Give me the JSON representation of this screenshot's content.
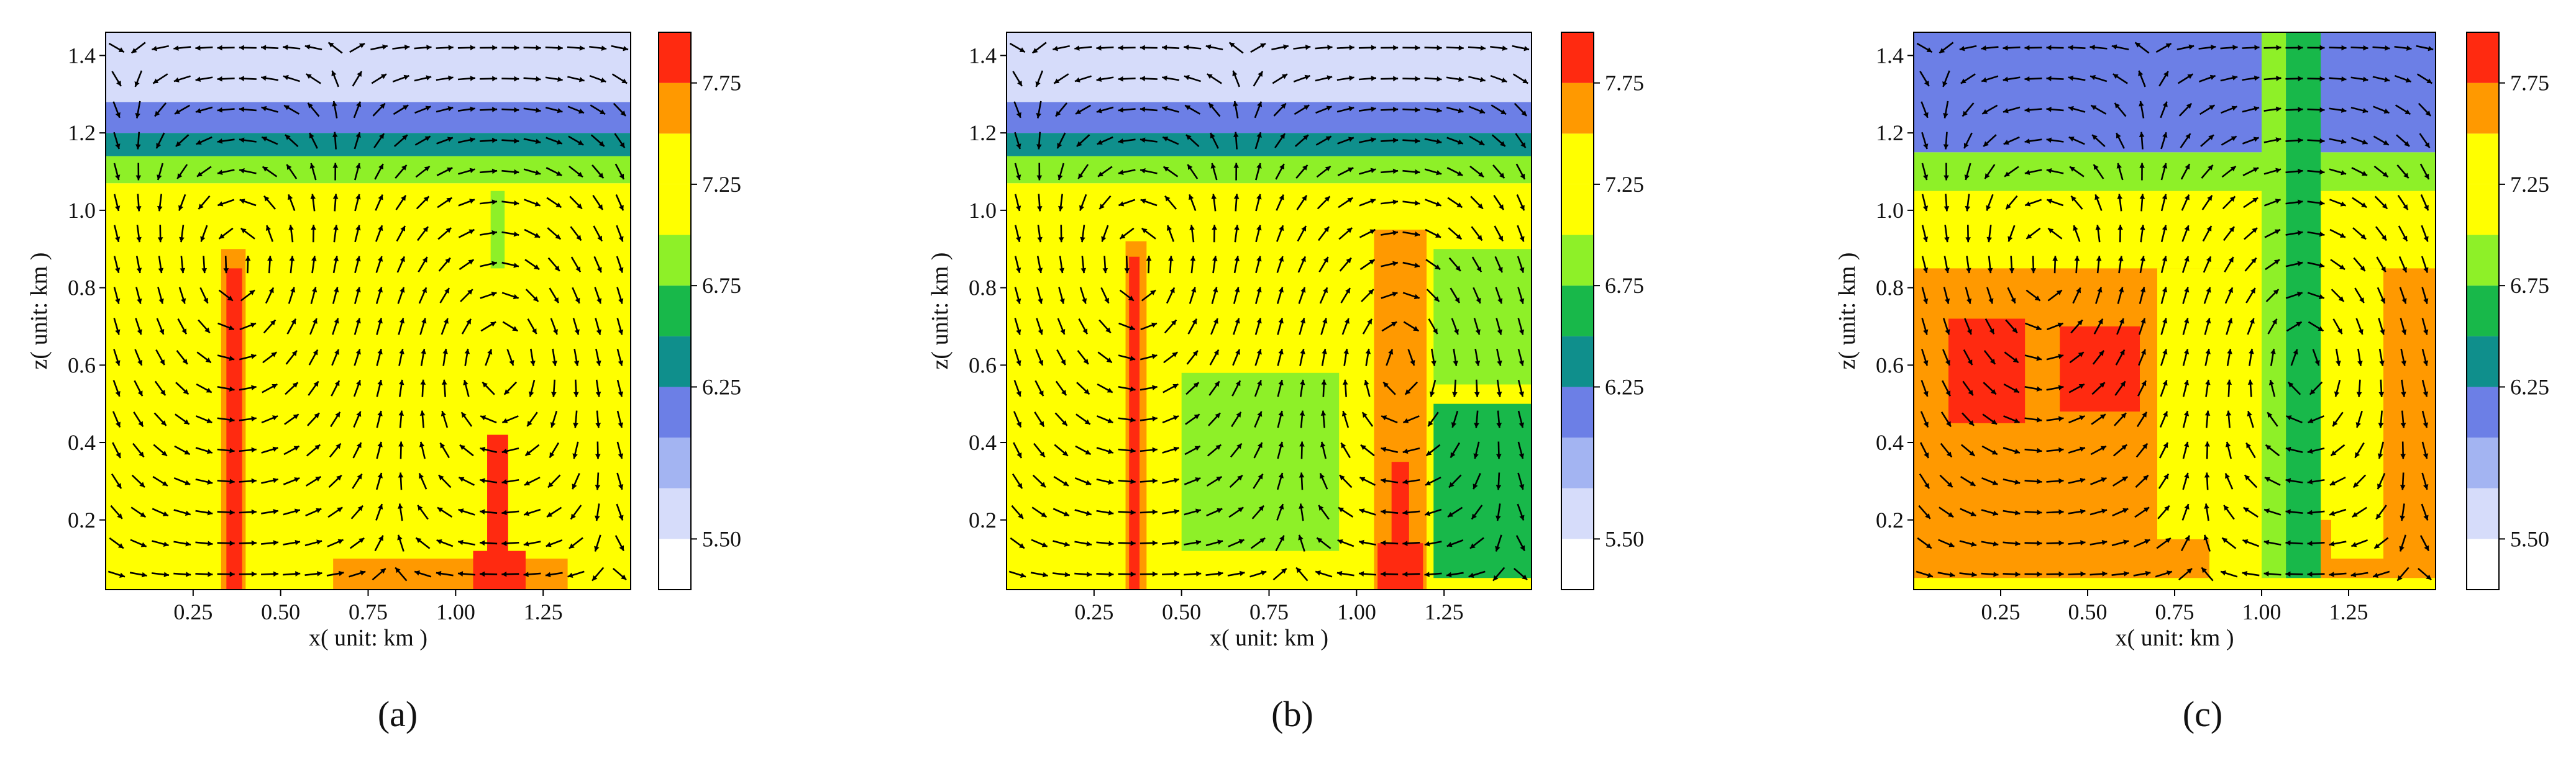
{
  "figure": {
    "panels": [
      {
        "label": "(a)",
        "bold": "a"
      },
      {
        "label": "(b)",
        "bold": "b"
      },
      {
        "label": "(c)",
        "bold": "c"
      }
    ]
  },
  "chart_data": [
    {
      "type": "heatmap",
      "panel": "(a)",
      "title": "",
      "xlabel": "x( unit: km )",
      "ylabel": "z( unit: km )",
      "xlim": [
        0.0,
        1.5
      ],
      "ylim": [
        0.02,
        1.46
      ],
      "xticks": [
        0.25,
        0.5,
        0.75,
        1.0,
        1.25
      ],
      "xtick_labels": [
        "0.25",
        "0.50",
        "0.75",
        "1.00",
        "1.25"
      ],
      "yticks": [
        0.2,
        0.4,
        0.6,
        0.8,
        1.0,
        1.2,
        1.4
      ],
      "ytick_labels": [
        "0.2",
        "0.4",
        "0.6",
        "0.8",
        "1.0",
        "1.2",
        "1.4"
      ],
      "colorbar": {
        "levels": [
          5.25,
          5.5,
          5.75,
          6.0,
          6.25,
          6.5,
          6.75,
          7.0,
          7.25,
          7.5,
          7.75,
          8.0
        ],
        "colors": [
          "#ffffff",
          "#d6dcfa",
          "#a3b4f2",
          "#6c7fe6",
          "#0f8f8c",
          "#18b84a",
          "#8ef028",
          "#ffff00",
          "#ffff00",
          "#ff9900",
          "#ff2a10"
        ],
        "tick_values": [
          5.5,
          6.25,
          6.75,
          7.25,
          7.75
        ],
        "tick_labels": [
          "5.50",
          "6.25",
          "6.75",
          "7.25",
          "7.75"
        ]
      },
      "field_regions": [
        {
          "value": 7.4,
          "x": [
            0.0,
            1.5
          ],
          "z": [
            0.0,
            1.05
          ]
        },
        {
          "value": 7.1,
          "x": [
            0.0,
            1.5
          ],
          "z": [
            1.0,
            1.07
          ]
        },
        {
          "value": 6.9,
          "x": [
            0.0,
            1.5
          ],
          "z": [
            1.07,
            1.14
          ]
        },
        {
          "value": 6.4,
          "x": [
            0.0,
            1.5
          ],
          "z": [
            1.14,
            1.2
          ]
        },
        {
          "value": 6.0,
          "x": [
            0.0,
            1.5
          ],
          "z": [
            1.2,
            1.28
          ]
        },
        {
          "value": 5.6,
          "x": [
            0.0,
            1.5
          ],
          "z": [
            1.28,
            1.46
          ]
        },
        {
          "value": 7.1,
          "x": [
            0.12,
            0.19
          ],
          "z": [
            0.05,
            0.47
          ]
        },
        {
          "value": 7.1,
          "x": [
            0.85,
            1.02
          ],
          "z": [
            0.5,
            0.83
          ]
        },
        {
          "value": 7.1,
          "x": [
            0.7,
            1.5
          ],
          "z": [
            0.3,
            0.58
          ]
        },
        {
          "value": 7.1,
          "x": [
            1.15,
            1.5
          ],
          "z": [
            0.55,
            1.0
          ]
        },
        {
          "value": 6.9,
          "x": [
            1.1,
            1.14
          ],
          "z": [
            0.85,
            1.05
          ]
        },
        {
          "value": 7.6,
          "x": [
            0.65,
            1.32
          ],
          "z": [
            0.02,
            0.1
          ]
        },
        {
          "value": 7.6,
          "x": [
            0.33,
            0.4
          ],
          "z": [
            0.02,
            0.9
          ]
        },
        {
          "value": 7.9,
          "x": [
            0.345,
            0.39
          ],
          "z": [
            0.02,
            0.85
          ]
        },
        {
          "value": 7.9,
          "x": [
            1.05,
            1.2
          ],
          "z": [
            0.02,
            0.12
          ]
        },
        {
          "value": 7.9,
          "x": [
            1.09,
            1.15
          ],
          "z": [
            0.02,
            0.42
          ]
        }
      ]
    },
    {
      "type": "heatmap",
      "panel": "(b)",
      "title": "",
      "xlabel": "x( unit: km )",
      "ylabel": "z( unit: km )",
      "xlim": [
        0.0,
        1.5
      ],
      "ylim": [
        0.02,
        1.46
      ],
      "xticks": [
        0.25,
        0.5,
        0.75,
        1.0,
        1.25
      ],
      "xtick_labels": [
        "0.25",
        "0.50",
        "0.75",
        "1.00",
        "1.25"
      ],
      "yticks": [
        0.2,
        0.4,
        0.6,
        0.8,
        1.0,
        1.2,
        1.4
      ],
      "ytick_labels": [
        "0.2",
        "0.4",
        "0.6",
        "0.8",
        "1.0",
        "1.2",
        "1.4"
      ],
      "colorbar": {
        "levels": [
          5.25,
          5.5,
          5.75,
          6.0,
          6.25,
          6.5,
          6.75,
          7.0,
          7.25,
          7.5,
          7.75,
          8.0
        ],
        "colors": [
          "#ffffff",
          "#d6dcfa",
          "#a3b4f2",
          "#6c7fe6",
          "#0f8f8c",
          "#18b84a",
          "#8ef028",
          "#ffff00",
          "#ffff00",
          "#ff9900",
          "#ff2a10"
        ],
        "tick_values": [
          5.5,
          6.25,
          6.75,
          7.25,
          7.75
        ],
        "tick_labels": [
          "5.50",
          "6.25",
          "6.75",
          "7.25",
          "7.75"
        ]
      },
      "field_regions": [
        {
          "value": 7.4,
          "x": [
            0.0,
            1.5
          ],
          "z": [
            0.0,
            1.05
          ]
        },
        {
          "value": 7.1,
          "x": [
            0.0,
            1.5
          ],
          "z": [
            1.0,
            1.07
          ]
        },
        {
          "value": 6.9,
          "x": [
            0.0,
            1.5
          ],
          "z": [
            1.07,
            1.14
          ]
        },
        {
          "value": 6.4,
          "x": [
            0.0,
            1.5
          ],
          "z": [
            1.14,
            1.2
          ]
        },
        {
          "value": 6.0,
          "x": [
            0.0,
            1.5
          ],
          "z": [
            1.2,
            1.28
          ]
        },
        {
          "value": 5.6,
          "x": [
            0.0,
            1.5
          ],
          "z": [
            1.28,
            1.46
          ]
        },
        {
          "value": 7.1,
          "x": [
            0.17,
            0.33
          ],
          "z": [
            0.05,
            0.6
          ]
        },
        {
          "value": 7.1,
          "x": [
            0.42,
            1.0
          ],
          "z": [
            0.1,
            0.95
          ]
        },
        {
          "value": 7.1,
          "x": [
            1.22,
            1.5
          ],
          "z": [
            0.05,
            0.98
          ]
        },
        {
          "value": 6.9,
          "x": [
            0.5,
            0.95
          ],
          "z": [
            0.12,
            0.58
          ]
        },
        {
          "value": 6.9,
          "x": [
            1.22,
            1.5
          ],
          "z": [
            0.55,
            0.9
          ]
        },
        {
          "value": 6.6,
          "x": [
            1.22,
            1.5
          ],
          "z": [
            0.05,
            0.5
          ]
        },
        {
          "value": 7.6,
          "x": [
            0.34,
            0.4
          ],
          "z": [
            0.02,
            0.92
          ]
        },
        {
          "value": 7.9,
          "x": [
            0.35,
            0.38
          ],
          "z": [
            0.02,
            0.88
          ]
        },
        {
          "value": 7.6,
          "x": [
            1.05,
            1.2
          ],
          "z": [
            0.02,
            0.95
          ]
        },
        {
          "value": 7.9,
          "x": [
            1.06,
            1.19
          ],
          "z": [
            0.02,
            0.14
          ]
        },
        {
          "value": 7.9,
          "x": [
            1.1,
            1.15
          ],
          "z": [
            0.02,
            0.35
          ]
        }
      ]
    },
    {
      "type": "heatmap",
      "panel": "(c)",
      "title": "",
      "xlabel": "x( unit: km )",
      "ylabel": "z( unit: km )",
      "xlim": [
        0.0,
        1.5
      ],
      "ylim": [
        0.02,
        1.46
      ],
      "xticks": [
        0.25,
        0.5,
        0.75,
        1.0,
        1.25
      ],
      "xtick_labels": [
        "0.25",
        "0.50",
        "0.75",
        "1.00",
        "1.25"
      ],
      "yticks": [
        0.2,
        0.4,
        0.6,
        0.8,
        1.0,
        1.2,
        1.4
      ],
      "ytick_labels": [
        "0.2",
        "0.4",
        "0.6",
        "0.8",
        "1.0",
        "1.2",
        "1.4"
      ],
      "colorbar": {
        "levels": [
          5.25,
          5.5,
          5.75,
          6.0,
          6.25,
          6.5,
          6.75,
          7.0,
          7.25,
          7.5,
          7.75,
          8.0
        ],
        "colors": [
          "#ffffff",
          "#d6dcfa",
          "#a3b4f2",
          "#6c7fe6",
          "#0f8f8c",
          "#18b84a",
          "#8ef028",
          "#ffff00",
          "#ffff00",
          "#ff9900",
          "#ff2a10"
        ],
        "tick_values": [
          5.5,
          6.25,
          6.75,
          7.25,
          7.75
        ],
        "tick_labels": [
          "5.50",
          "6.25",
          "6.75",
          "7.25",
          "7.75"
        ]
      },
      "field_regions": [
        {
          "value": 7.6,
          "x": [
            0.0,
            1.5
          ],
          "z": [
            0.0,
            1.05
          ]
        },
        {
          "value": 7.1,
          "x": [
            0.0,
            1.5
          ],
          "z": [
            0.85,
            1.05
          ]
        },
        {
          "value": 6.9,
          "x": [
            0.0,
            1.5
          ],
          "z": [
            1.05,
            1.15
          ]
        },
        {
          "value": 6.1,
          "x": [
            0.0,
            1.5
          ],
          "z": [
            1.15,
            1.46
          ]
        },
        {
          "value": 7.4,
          "x": [
            0.7,
            1.0
          ],
          "z": [
            0.15,
            0.85
          ]
        },
        {
          "value": 7.1,
          "x": [
            0.85,
            1.0
          ],
          "z": [
            0.05,
            0.85
          ]
        },
        {
          "value": 7.4,
          "x": [
            1.2,
            1.35
          ],
          "z": [
            0.1,
            0.85
          ]
        },
        {
          "value": 7.1,
          "x": [
            1.17,
            1.25
          ],
          "z": [
            0.2,
            0.85
          ]
        },
        {
          "value": 7.9,
          "x": [
            0.1,
            0.32
          ],
          "z": [
            0.45,
            0.72
          ]
        },
        {
          "value": 7.9,
          "x": [
            0.42,
            0.65
          ],
          "z": [
            0.48,
            0.7
          ]
        },
        {
          "value": 6.9,
          "x": [
            1.0,
            1.07
          ],
          "z": [
            0.05,
            1.46
          ]
        },
        {
          "value": 6.6,
          "x": [
            1.07,
            1.17
          ],
          "z": [
            0.02,
            1.46
          ]
        },
        {
          "value": 7.4,
          "x": [
            0.0,
            1.5
          ],
          "z": [
            0.02,
            0.05
          ]
        }
      ]
    }
  ]
}
